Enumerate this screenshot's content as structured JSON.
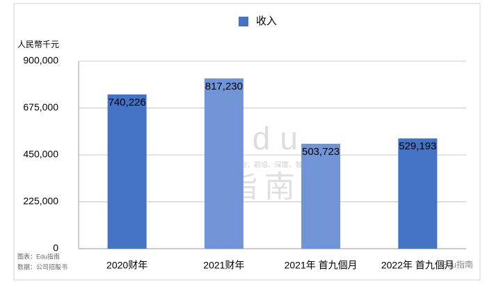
{
  "chart_data": {
    "type": "bar",
    "y_axis_label": "人民幣千元",
    "categories": [
      "2020财年",
      "2021财年",
      "2021年 首九個月",
      "2022年 首九個月"
    ],
    "series": [
      {
        "name": "收入",
        "color": "#4472c4",
        "colors": [
          "#4472c4",
          "#7094d6",
          "#7094d6",
          "#4472c4"
        ],
        "values": [
          740226,
          817230,
          503723,
          529193
        ],
        "value_labels": [
          "740,226",
          "817,230",
          "503,723",
          "529,193"
        ]
      }
    ],
    "ylim": [
      0,
      900000
    ],
    "yticks": [
      0,
      {
        "value": 225000,
        "label": "225,000"
      },
      {
        "value": 450000,
        "label": "450,000"
      },
      {
        "value": 675000,
        "label": "675,000"
      },
      {
        "value": 900000,
        "label": "900,000"
      }
    ],
    "grid": true,
    "legend": "top",
    "notes": [
      "图表：Edu指南",
      "数据：公司招股书"
    ],
    "watermark": {
      "title": "Edu",
      "subtitle": "教育行业、前沿、深度、独家",
      "name": "指南",
      "corner": "Edu指南"
    }
  }
}
